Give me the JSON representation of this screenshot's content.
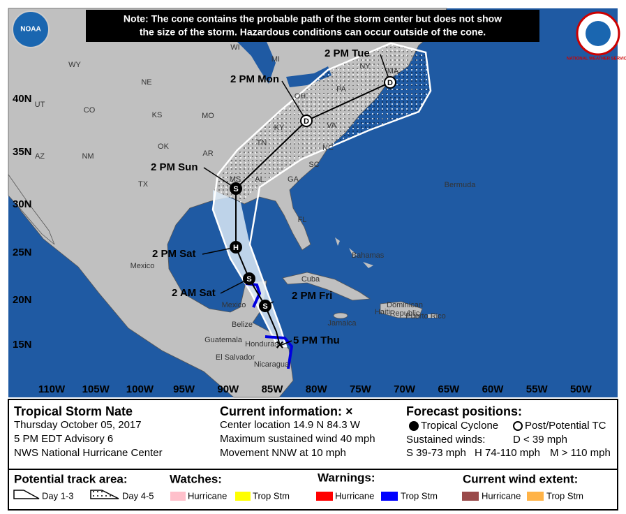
{
  "note": [
    "Note: The cone contains the probable path of the storm center but does not show",
    "the size of the storm. Hazardous conditions can occur outside of the cone."
  ],
  "logos": {
    "left": "NOAA",
    "right": "NATIONAL WEATHER SERVICE"
  },
  "lon_labels": [
    "110W",
    "105W",
    "100W",
    "95W",
    "90W",
    "85W",
    "80W",
    "75W",
    "70W",
    "65W",
    "60W",
    "55W",
    "50W"
  ],
  "lat_labels": [
    "40N",
    "35N",
    "30N",
    "25N",
    "20N",
    "15N"
  ],
  "places": [
    "WY",
    "NE",
    "CO",
    "UT",
    "KS",
    "MO",
    "OK",
    "AR",
    "NM",
    "AZ",
    "TX",
    "MS",
    "AL",
    "GA",
    "SC",
    "NC",
    "TN",
    "KY",
    "VA",
    "OH",
    "PA",
    "WI",
    "MI",
    "NY",
    "MA",
    "FL",
    "Mexico",
    "Mexico",
    "Belize",
    "Guatemala",
    "Honduras",
    "El Salvador",
    "Nicaragua",
    "Cuba",
    "Jamaica",
    "Bahamas",
    "Dominican",
    "Republic",
    "Haiti",
    "Puerto Rico",
    "Bermuda"
  ],
  "track": [
    {
      "label": "5 PM Thu",
      "marker": "×"
    },
    {
      "label": "2 PM Fri",
      "marker": "S"
    },
    {
      "label": "2 AM Sat",
      "marker": "S"
    },
    {
      "label": "2 PM Sat",
      "marker": "H"
    },
    {
      "label": "2 PM Sun",
      "marker": "S"
    },
    {
      "label": "2 PM Mon",
      "marker": "D"
    },
    {
      "label": "2 PM Tue",
      "marker": "D"
    }
  ],
  "storm": {
    "name": "Tropical Storm Nate",
    "date": "Thursday October 05, 2017",
    "advisory": "5 PM EDT Advisory 6",
    "center": "NWS National Hurricane Center"
  },
  "current": {
    "heading": "Current information: ×",
    "lines": [
      "Center location 14.9 N 84.3 W",
      "Maximum sustained wind 40 mph",
      "Movement NNW at 10 mph"
    ]
  },
  "forecast": {
    "heading": "Forecast positions:",
    "tc": "Tropical Cyclone",
    "ptc": "Post/Potential TC",
    "winds": "Sustained winds:",
    "d": "D < 39 mph",
    "s": "S 39-73 mph",
    "h": "H 74-110 mph",
    "m": "M > 110 mph"
  },
  "legend": {
    "track_area": "Potential track area:",
    "day13": "Day 1-3",
    "day45": "Day 4-5",
    "watches": "Watches:",
    "w_hur": "Hurricane",
    "w_ts": "Trop Stm",
    "warnings": "Warnings:",
    "wa_hur": "Hurricane",
    "wa_ts": "Trop Stm",
    "extent": "Current wind extent:",
    "e_hur": "Hurricane",
    "e_ts": "Trop Stm"
  }
}
